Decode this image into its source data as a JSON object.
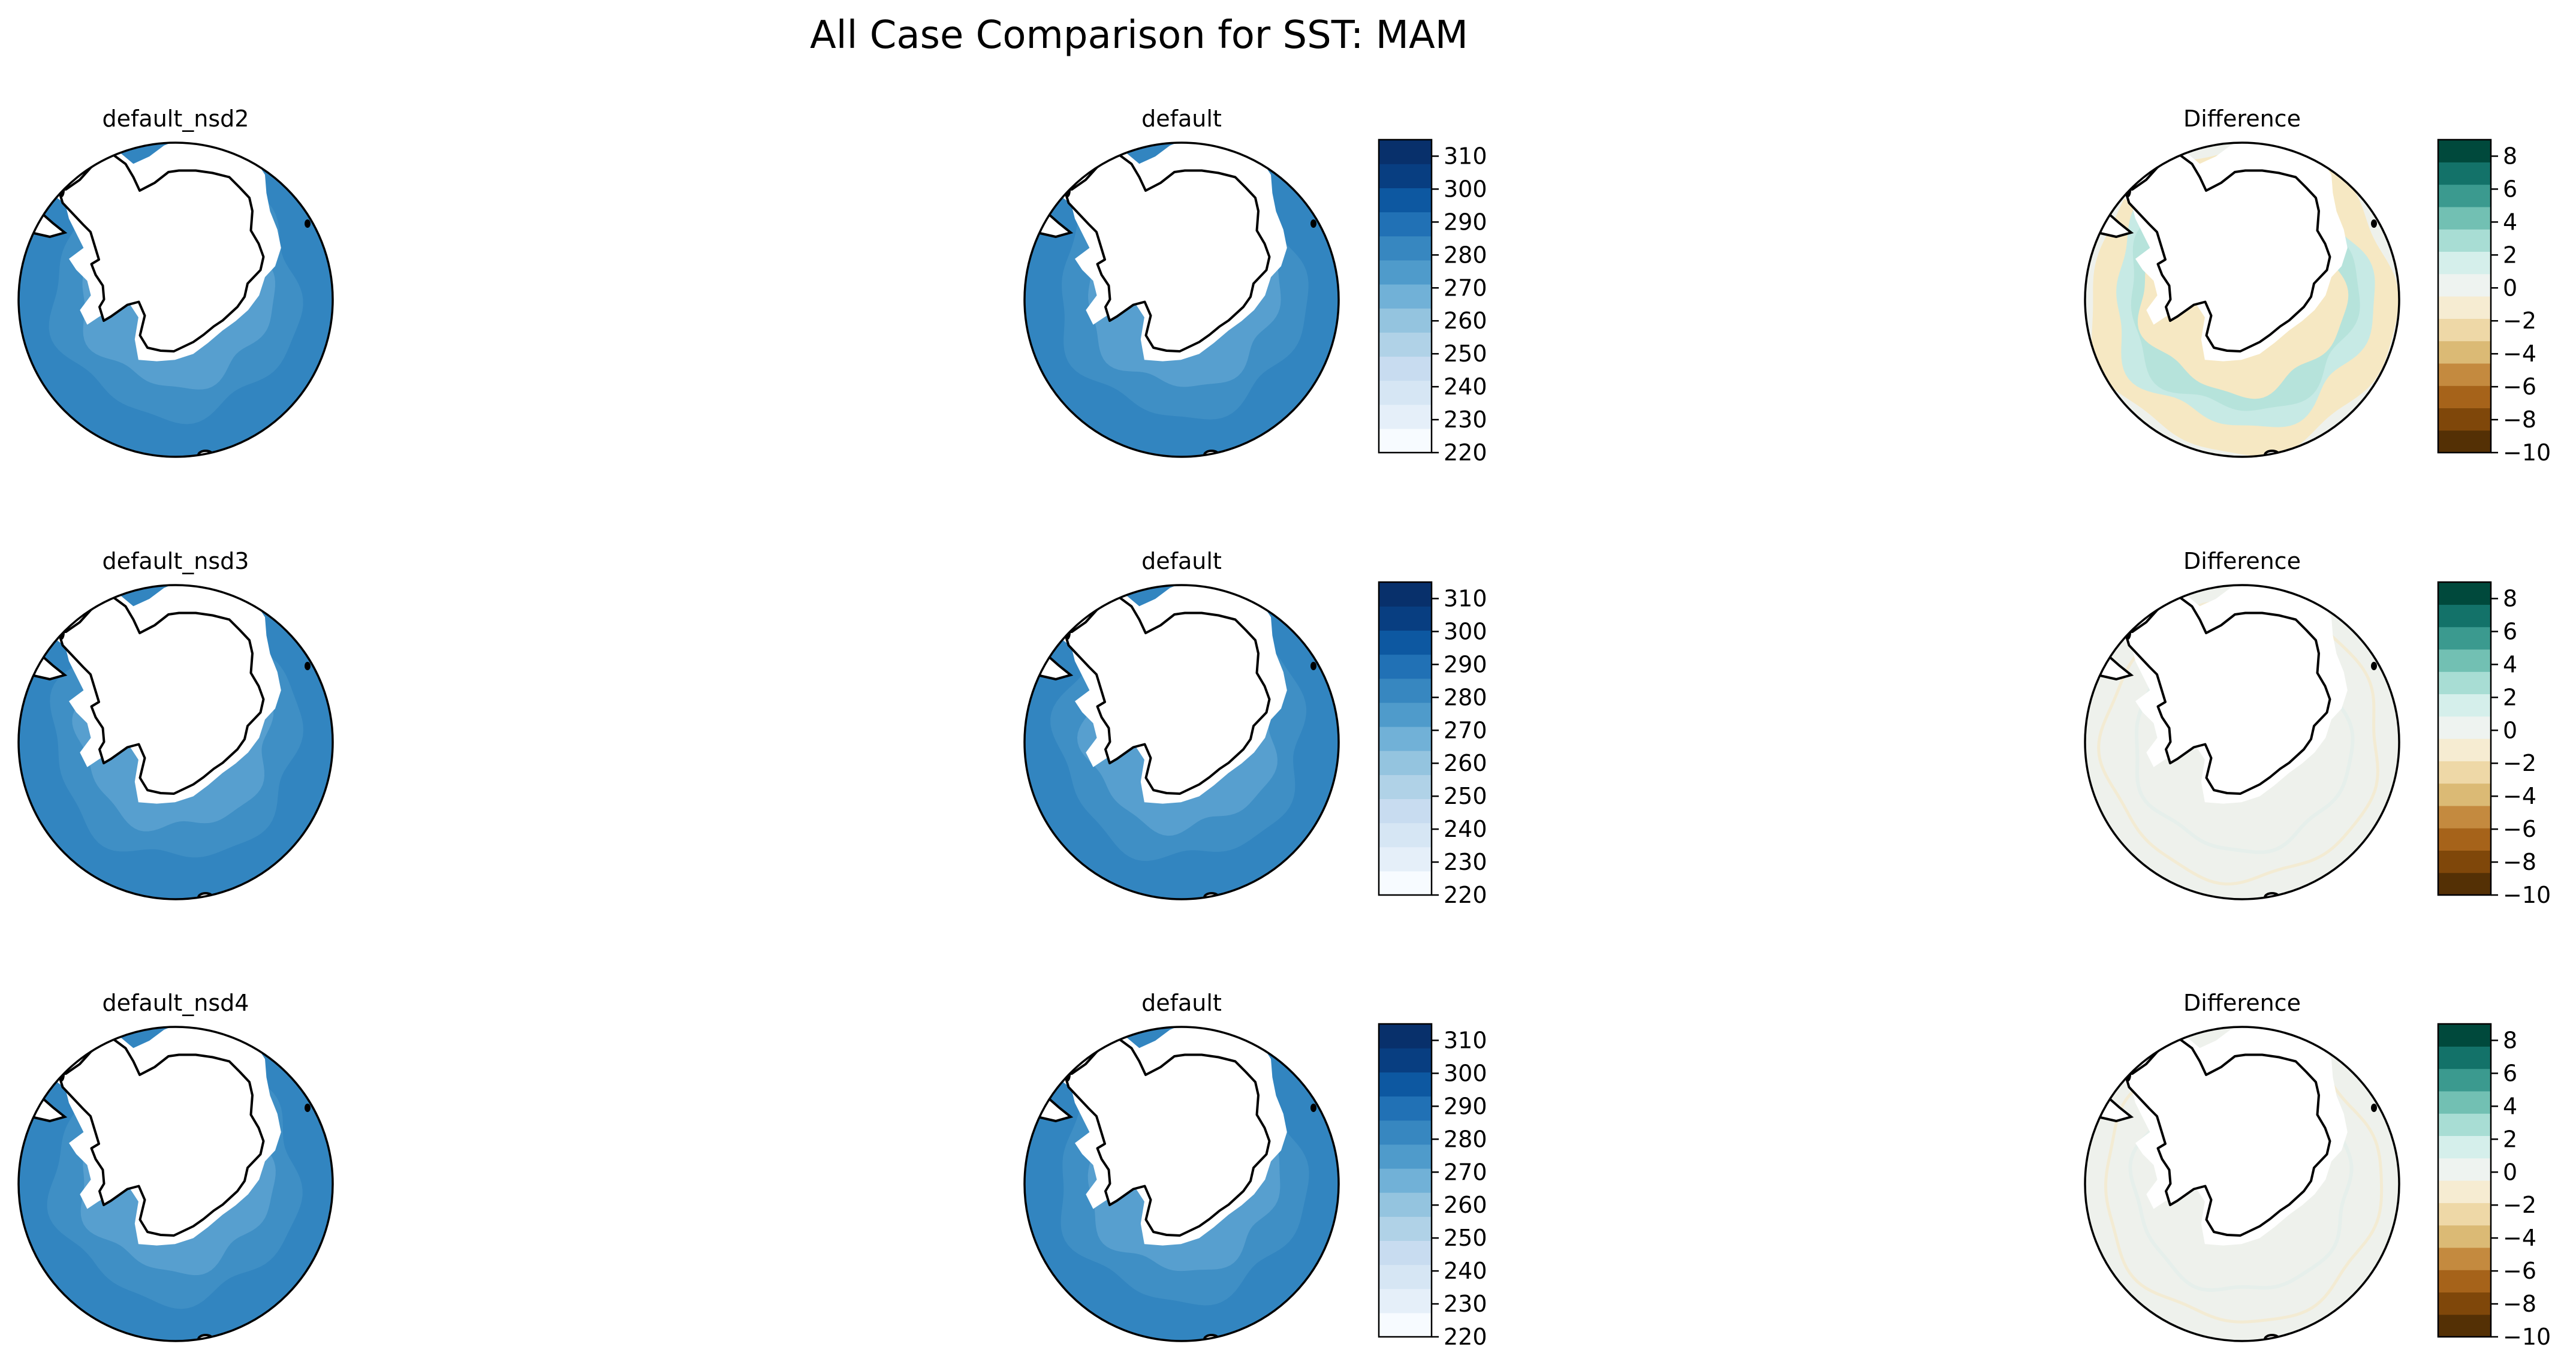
{
  "figure": {
    "title": "All Case Comparison for SST: MAM"
  },
  "colors": {
    "ocean_case": "#3f8fc5",
    "ocean_case_inner": "#579fcf",
    "ocean_case_outer": "#3285c0",
    "land": "#ffffff",
    "diff_neutral": "#eef1ec",
    "diff_positive": "#c7eae5",
    "diff_negative": "#f6e8c3",
    "blues_cmap": [
      "#f7fbff",
      "#e5eff9",
      "#d6e6f4",
      "#c8dcf0",
      "#b0d2e7",
      "#94c4df",
      "#71b1d7",
      "#4f9bcb",
      "#3787c0",
      "#2171b5",
      "#0d58a1",
      "#083e81",
      "#08306b"
    ],
    "brbg_cmap": [
      "#543005",
      "#7f470a",
      "#a6631a",
      "#c48a3f",
      "#dbba75",
      "#eed8a7",
      "#f6ecd2",
      "#eef3f0",
      "#d5efeb",
      "#a8ddd4",
      "#72c0b3",
      "#3b9a8f",
      "#137269",
      "#00493c"
    ]
  },
  "chart_data": [
    {
      "type": "heatmap",
      "projection": "south-polar-stereographic",
      "title": "default_nsd2",
      "variable": "SST",
      "season": "MAM",
      "role": "test"
    },
    {
      "type": "heatmap",
      "projection": "south-polar-stereographic",
      "title": "default",
      "variable": "SST",
      "season": "MAM",
      "role": "control",
      "colorbar": {
        "ticks": [
          310,
          300,
          290,
          280,
          270,
          260,
          250,
          240,
          230,
          220
        ],
        "range": [
          220,
          315
        ],
        "cmap": "Blues"
      }
    },
    {
      "type": "heatmap",
      "projection": "south-polar-stereographic",
      "title": "Difference",
      "variable": "SST",
      "season": "MAM",
      "role": "difference",
      "pattern": "ring",
      "colorbar": {
        "ticks": [
          8,
          6,
          4,
          2,
          0,
          -2,
          -4,
          -6,
          -8,
          -10
        ],
        "range": [
          -10,
          9
        ],
        "cmap": "BrBG"
      }
    },
    {
      "type": "heatmap",
      "projection": "south-polar-stereographic",
      "title": "default_nsd3",
      "variable": "SST",
      "season": "MAM",
      "role": "test"
    },
    {
      "type": "heatmap",
      "projection": "south-polar-stereographic",
      "title": "default",
      "variable": "SST",
      "season": "MAM",
      "role": "control",
      "colorbar": {
        "ticks": [
          310,
          300,
          290,
          280,
          270,
          260,
          250,
          240,
          230,
          220
        ],
        "range": [
          220,
          315
        ],
        "cmap": "Blues"
      }
    },
    {
      "type": "heatmap",
      "projection": "south-polar-stereographic",
      "title": "Difference",
      "variable": "SST",
      "season": "MAM",
      "role": "difference",
      "pattern": "near-zero",
      "colorbar": {
        "ticks": [
          8,
          6,
          4,
          2,
          0,
          -2,
          -4,
          -6,
          -8,
          -10
        ],
        "range": [
          -10,
          9
        ],
        "cmap": "BrBG"
      }
    },
    {
      "type": "heatmap",
      "projection": "south-polar-stereographic",
      "title": "default_nsd4",
      "variable": "SST",
      "season": "MAM",
      "role": "test"
    },
    {
      "type": "heatmap",
      "projection": "south-polar-stereographic",
      "title": "default",
      "variable": "SST",
      "season": "MAM",
      "role": "control",
      "colorbar": {
        "ticks": [
          310,
          300,
          290,
          280,
          270,
          260,
          250,
          240,
          230,
          220
        ],
        "range": [
          220,
          315
        ],
        "cmap": "Blues"
      }
    },
    {
      "type": "heatmap",
      "projection": "south-polar-stereographic",
      "title": "Difference",
      "variable": "SST",
      "season": "MAM",
      "role": "difference",
      "pattern": "near-zero",
      "colorbar": {
        "ticks": [
          8,
          6,
          4,
          2,
          0,
          -2,
          -4,
          -6,
          -8,
          -10
        ],
        "range": [
          -10,
          9
        ],
        "cmap": "BrBG"
      }
    }
  ]
}
